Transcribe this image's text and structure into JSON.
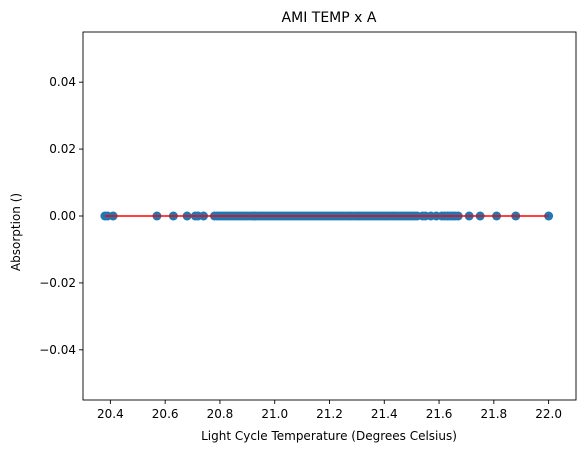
{
  "chart_data": {
    "type": "scatter",
    "title": "AMI TEMP x A",
    "xlabel": "Light Cycle Temperature (Degrees Celsius)",
    "ylabel": "Absorption ()",
    "xlim": [
      20.3,
      22.1
    ],
    "ylim": [
      -0.055,
      0.055
    ],
    "xticks": [
      20.4,
      20.6,
      20.8,
      21.0,
      21.2,
      21.4,
      21.6,
      21.8,
      22.0
    ],
    "yticks": [
      -0.04,
      -0.02,
      0.0,
      0.02,
      0.04
    ],
    "xtick_labels": [
      "20.4",
      "20.6",
      "20.8",
      "21.0",
      "21.2",
      "21.4",
      "21.6",
      "21.8",
      "22.0"
    ],
    "ytick_labels": [
      "−0.04",
      "−0.02",
      "0.00",
      "0.02",
      "0.04"
    ],
    "grid": false,
    "point_color": "#1f77b4",
    "fit_line_color": "#ff0000",
    "fit_line": {
      "x": [
        20.38,
        22.0
      ],
      "y": [
        0.0,
        0.0
      ]
    },
    "points": {
      "x": [
        20.38,
        20.39,
        20.41,
        20.57,
        20.63,
        20.68,
        20.71,
        20.72,
        20.74,
        20.78,
        20.79,
        20.8,
        20.81,
        20.82,
        20.83,
        20.84,
        20.85,
        20.86,
        20.87,
        20.88,
        20.89,
        20.9,
        20.91,
        20.92,
        20.93,
        20.94,
        20.95,
        20.96,
        20.97,
        20.98,
        20.99,
        21.0,
        21.01,
        21.02,
        21.03,
        21.04,
        21.05,
        21.06,
        21.07,
        21.08,
        21.09,
        21.1,
        21.11,
        21.12,
        21.13,
        21.14,
        21.15,
        21.16,
        21.17,
        21.18,
        21.19,
        21.2,
        21.21,
        21.22,
        21.23,
        21.24,
        21.25,
        21.26,
        21.27,
        21.28,
        21.29,
        21.3,
        21.31,
        21.32,
        21.33,
        21.34,
        21.35,
        21.36,
        21.37,
        21.38,
        21.39,
        21.4,
        21.41,
        21.42,
        21.43,
        21.44,
        21.45,
        21.46,
        21.47,
        21.48,
        21.49,
        21.5,
        21.51,
        21.52,
        21.54,
        21.55,
        21.57,
        21.59,
        21.61,
        21.62,
        21.63,
        21.64,
        21.65,
        21.66,
        21.67,
        21.71,
        21.75,
        21.81,
        21.88,
        22.0
      ],
      "y": [
        0,
        0,
        0,
        0,
        0,
        0,
        0,
        0,
        0,
        0,
        0,
        0,
        0,
        0,
        0,
        0,
        0,
        0,
        0,
        0,
        0,
        0,
        0,
        0,
        0,
        0,
        0,
        0,
        0,
        0,
        0,
        0,
        0,
        0,
        0,
        0,
        0,
        0,
        0,
        0,
        0,
        0,
        0,
        0,
        0,
        0,
        0,
        0,
        0,
        0,
        0,
        0,
        0,
        0,
        0,
        0,
        0,
        0,
        0,
        0,
        0,
        0,
        0,
        0,
        0,
        0,
        0,
        0,
        0,
        0,
        0,
        0,
        0,
        0,
        0,
        0,
        0,
        0,
        0,
        0,
        0,
        0,
        0,
        0,
        0,
        0,
        0,
        0,
        0,
        0,
        0,
        0,
        0,
        0,
        0,
        0,
        0,
        0,
        0,
        0
      ]
    }
  }
}
